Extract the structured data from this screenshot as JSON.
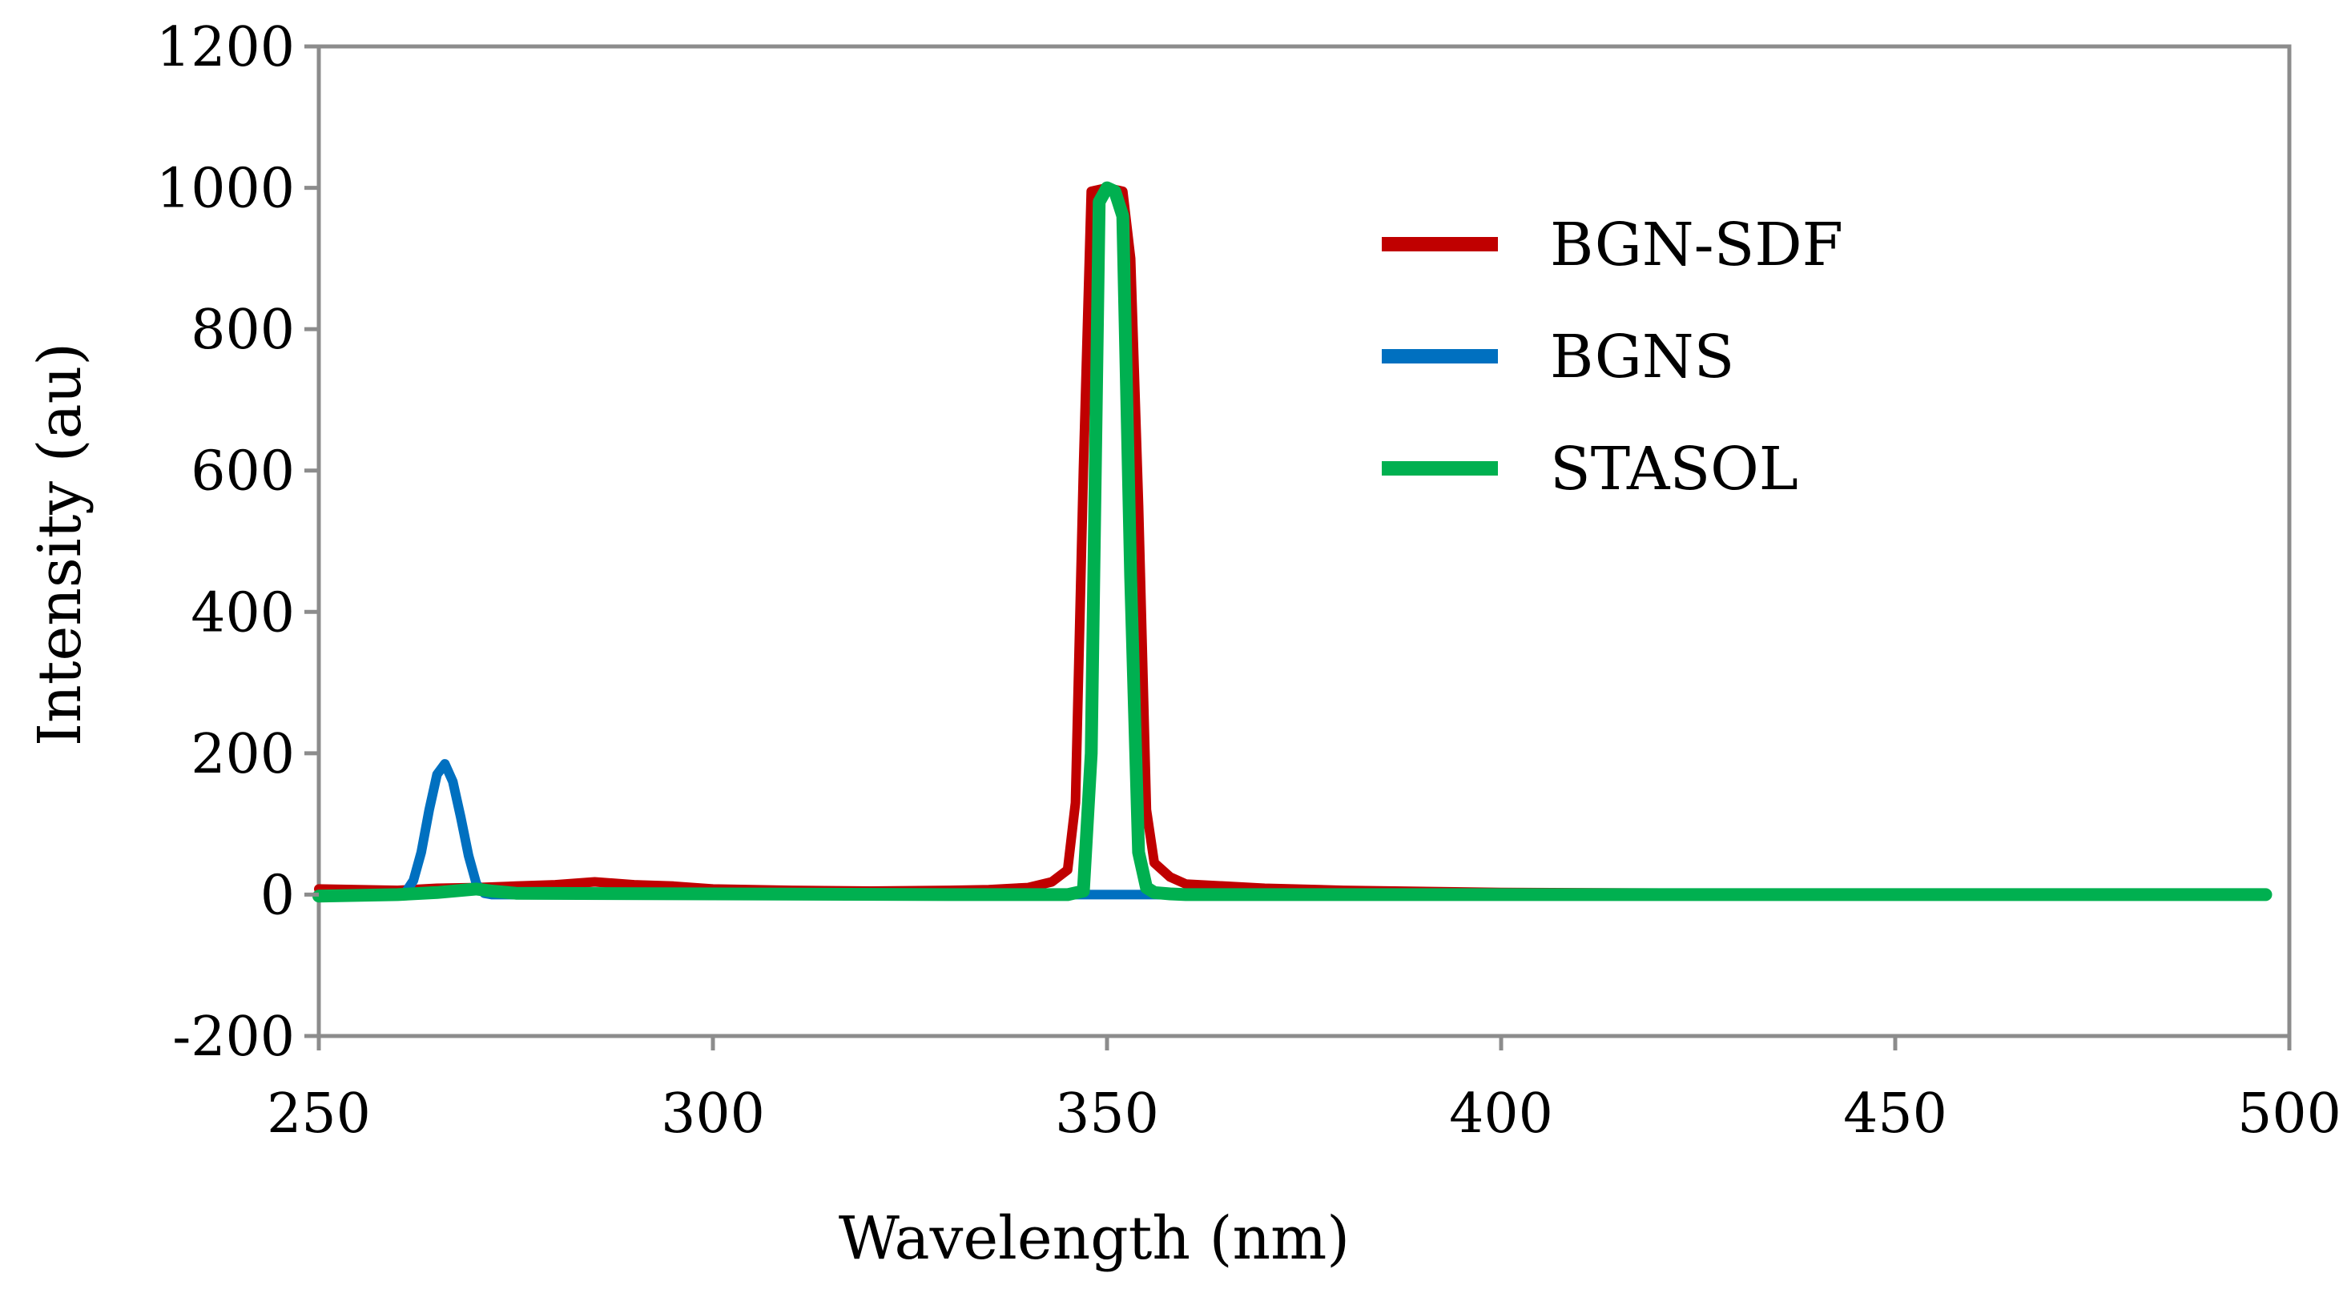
{
  "chart_data": {
    "type": "line",
    "title": "",
    "xlabel": "Wavelength (nm)",
    "ylabel": "Intensity (au)",
    "xlim": [
      250,
      500
    ],
    "ylim": [
      -200,
      1200
    ],
    "xticks": [
      250,
      300,
      350,
      400,
      450,
      500
    ],
    "yticks": [
      -200,
      0,
      200,
      400,
      600,
      800,
      1000,
      1200
    ],
    "x_tick_labels": [
      "250",
      "300",
      "350",
      "400",
      "450",
      "500"
    ],
    "y_tick_labels": [
      "-200",
      "0",
      "200",
      "400",
      "600",
      "800",
      "1000",
      "1200"
    ],
    "grid": false,
    "legend_position": "top-right",
    "series": [
      {
        "name": "BGN-SDF",
        "color": "#C00000",
        "x": [
          250,
          255,
          260,
          265,
          270,
          275,
          280,
          285,
          290,
          295,
          300,
          310,
          320,
          330,
          335,
          340,
          343,
          345,
          346,
          347,
          348,
          350,
          352,
          353,
          354,
          355,
          356,
          358,
          360,
          370,
          380,
          400,
          450,
          497
        ],
        "y": [
          8,
          7,
          6,
          9,
          10,
          12,
          14,
          18,
          14,
          12,
          8,
          6,
          5,
          6,
          7,
          10,
          18,
          35,
          130,
          600,
          995,
          1000,
          995,
          900,
          550,
          120,
          45,
          25,
          15,
          9,
          6,
          3,
          1,
          0
        ]
      },
      {
        "name": "BGNS",
        "color": "#0070C0",
        "x": [
          250,
          260,
          261,
          262,
          263,
          264,
          265,
          266,
          267,
          268,
          269,
          270,
          271,
          272,
          300,
          340,
          345,
          350,
          355,
          360,
          400,
          450,
          497
        ],
        "y": [
          0,
          0,
          3,
          20,
          60,
          120,
          170,
          185,
          160,
          110,
          55,
          15,
          2,
          0,
          0,
          0,
          0,
          0,
          0,
          0,
          0,
          0,
          0
        ]
      },
      {
        "name": "STASOL",
        "color": "#00B050",
        "x": [
          250,
          260,
          265,
          270,
          272,
          275,
          300,
          330,
          345,
          347,
          348,
          349,
          350,
          351,
          352,
          353,
          354,
          355,
          356,
          358,
          360,
          400,
          450,
          497
        ],
        "y": [
          -2,
          0,
          3,
          8,
          5,
          2,
          1,
          0,
          0,
          5,
          200,
          980,
          1000,
          995,
          960,
          450,
          60,
          10,
          3,
          1,
          0,
          0,
          0,
          0
        ]
      }
    ]
  }
}
